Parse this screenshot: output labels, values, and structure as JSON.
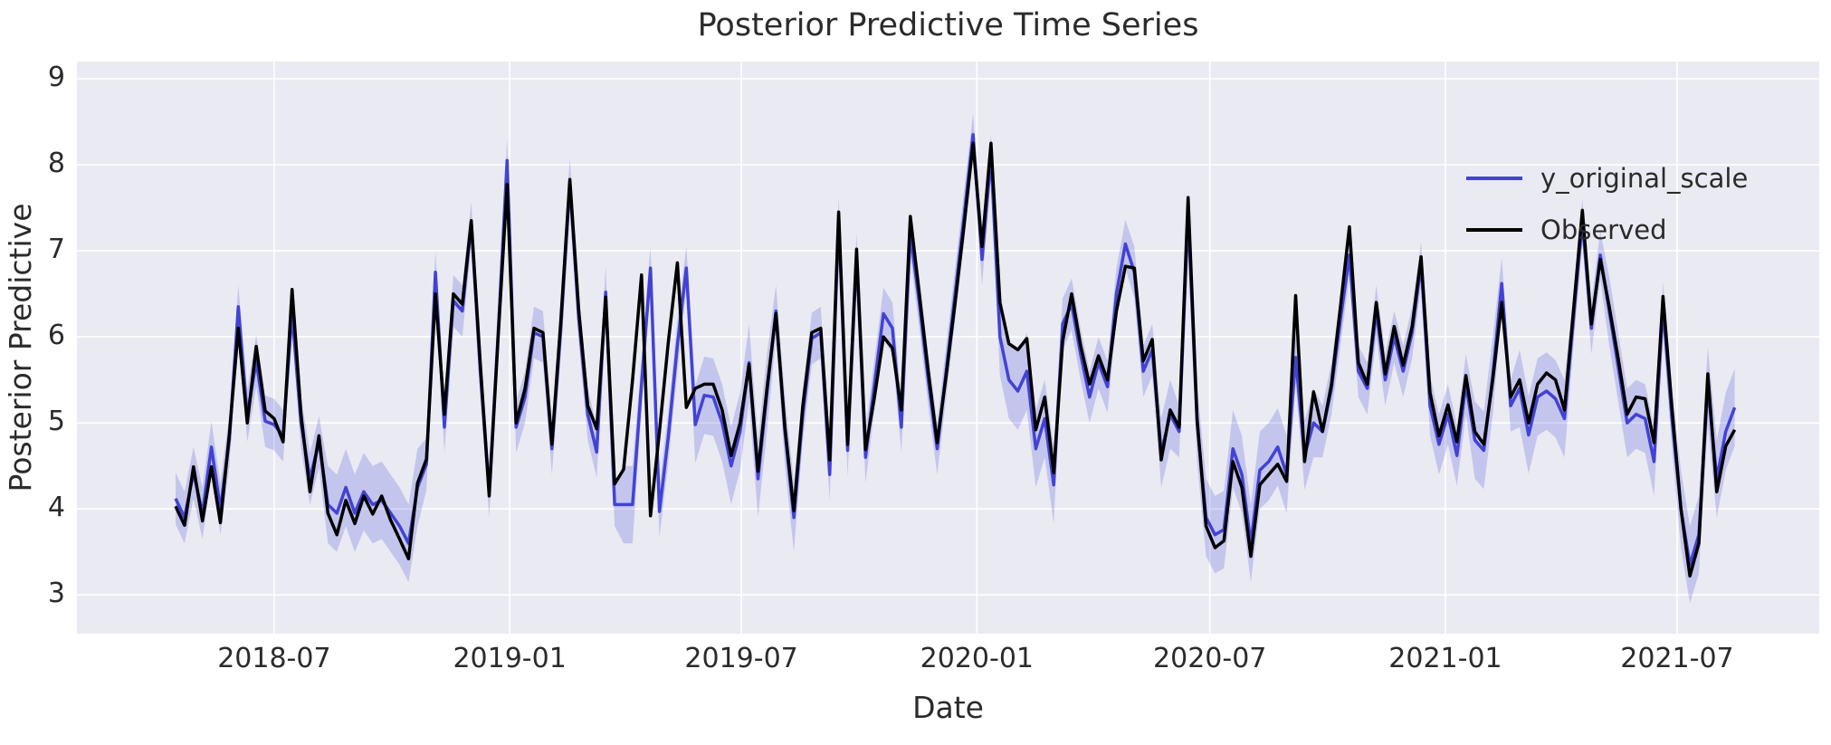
{
  "chart_data": {
    "type": "line",
    "title": "Posterior Predictive Time Series",
    "xlabel": "Date",
    "ylabel": "Posterior Predictive",
    "grid": true,
    "legend_position": "upper right",
    "background_color": "#EAEAF2",
    "grid_color": "#ffffff",
    "text_color": "#2b2b2b",
    "band_color": "#4243d4",
    "band_opacity": 0.22,
    "ylim": [
      2.55,
      9.2
    ],
    "yticks": [
      3,
      4,
      5,
      6,
      7,
      8,
      9
    ],
    "start_date": "2018-04-15",
    "freq_days": 7,
    "xticks": [
      {
        "label": "2018-07",
        "day_offset": 77
      },
      {
        "label": "2019-01",
        "day_offset": 261
      },
      {
        "label": "2019-07",
        "day_offset": 442
      },
      {
        "label": "2020-01",
        "day_offset": 626
      },
      {
        "label": "2020-07",
        "day_offset": 808
      },
      {
        "label": "2021-01",
        "day_offset": 992
      },
      {
        "label": "2021-07",
        "day_offset": 1173
      }
    ],
    "series": [
      {
        "name": "y_original_scale",
        "color": "#4243d4",
        "values": [
          4.12,
          3.9,
          4.42,
          3.95,
          4.72,
          4.0,
          4.8,
          6.35,
          5.08,
          5.72,
          5.02,
          4.98,
          4.85,
          6.28,
          5.0,
          4.35,
          4.78,
          4.05,
          3.95,
          4.25,
          3.95,
          4.2,
          4.05,
          4.1,
          3.95,
          3.8,
          3.6,
          4.25,
          4.52,
          6.75,
          4.95,
          6.42,
          6.3,
          7.32,
          5.6,
          4.2,
          6.05,
          8.05,
          4.95,
          5.3,
          6.05,
          6.0,
          4.7,
          6.1,
          7.78,
          6.2,
          5.1,
          4.66,
          6.52,
          4.05,
          4.05,
          4.05,
          5.45,
          6.8,
          3.97,
          4.85,
          5.9,
          6.8,
          4.98,
          5.32,
          5.3,
          5.0,
          4.5,
          4.9,
          5.7,
          4.35,
          5.35,
          6.3,
          4.9,
          3.9,
          5.1,
          5.98,
          6.05,
          4.4,
          7.38,
          4.68,
          6.95,
          4.6,
          5.45,
          6.27,
          6.1,
          4.95,
          7.2,
          6.4,
          5.5,
          4.7,
          5.6,
          6.5,
          7.4,
          8.35,
          6.9,
          8.1,
          6.0,
          5.5,
          5.37,
          5.6,
          4.7,
          5.05,
          4.28,
          6.15,
          6.38,
          5.8,
          5.3,
          5.7,
          5.42,
          6.5,
          7.08,
          6.75,
          5.6,
          5.85,
          4.65,
          5.1,
          4.9,
          7.42,
          5.0,
          3.9,
          3.7,
          3.76,
          4.7,
          4.4,
          3.6,
          4.45,
          4.55,
          4.72,
          4.4,
          5.76,
          4.62,
          5.0,
          4.9,
          5.4,
          6.2,
          6.95,
          5.6,
          5.4,
          6.3,
          5.5,
          6.0,
          5.6,
          6.05,
          6.85,
          5.2,
          4.75,
          5.1,
          4.62,
          5.45,
          4.8,
          4.68,
          5.55,
          6.62,
          5.2,
          5.4,
          4.86,
          5.3,
          5.37,
          5.28,
          5.05,
          6.2,
          7.35,
          6.1,
          6.95,
          6.3,
          5.65,
          5.0,
          5.1,
          5.05,
          4.55,
          6.35,
          5.05,
          4.0,
          3.35,
          3.7,
          5.43,
          4.35,
          4.9,
          5.18
        ]
      },
      {
        "name": "Observed",
        "color": "#000000",
        "values": [
          4.03,
          3.81,
          4.49,
          3.86,
          4.49,
          3.84,
          4.87,
          6.1,
          5.0,
          5.89,
          5.14,
          5.05,
          4.78,
          6.55,
          5.1,
          4.2,
          4.85,
          3.95,
          3.7,
          4.1,
          3.83,
          4.15,
          3.94,
          4.15,
          3.87,
          3.65,
          3.42,
          4.3,
          4.58,
          6.5,
          5.1,
          6.5,
          6.38,
          7.35,
          5.7,
          4.15,
          6.0,
          7.77,
          5.0,
          5.4,
          6.1,
          6.05,
          4.75,
          6.2,
          7.83,
          6.3,
          5.2,
          4.93,
          6.46,
          4.29,
          4.46,
          5.5,
          6.72,
          3.92,
          4.9,
          5.95,
          6.86,
          5.18,
          5.4,
          5.45,
          5.45,
          5.15,
          4.62,
          5.0,
          5.68,
          4.44,
          5.4,
          6.27,
          4.95,
          3.98,
          5.2,
          6.05,
          6.1,
          4.57,
          7.45,
          4.75,
          7.02,
          4.69,
          5.3,
          6.0,
          5.87,
          5.15,
          7.4,
          6.5,
          5.6,
          4.77,
          5.55,
          6.4,
          7.3,
          8.25,
          7.05,
          8.25,
          6.4,
          5.92,
          5.85,
          5.98,
          4.92,
          5.3,
          4.42,
          5.95,
          6.5,
          5.9,
          5.45,
          5.78,
          5.5,
          6.3,
          6.82,
          6.8,
          5.72,
          5.97,
          4.57,
          5.15,
          4.95,
          7.62,
          5.05,
          3.8,
          3.55,
          3.63,
          4.55,
          4.25,
          3.45,
          4.28,
          4.4,
          4.52,
          4.32,
          6.48,
          4.55,
          5.36,
          4.9,
          5.45,
          6.35,
          7.28,
          5.7,
          5.45,
          6.4,
          5.57,
          6.12,
          5.67,
          6.12,
          6.93,
          5.35,
          4.85,
          5.21,
          4.78,
          5.55,
          4.9,
          4.75,
          5.5,
          6.4,
          5.3,
          5.5,
          5.0,
          5.45,
          5.58,
          5.5,
          5.15,
          6.3,
          7.47,
          6.15,
          6.9,
          6.35,
          5.75,
          5.1,
          5.3,
          5.28,
          4.77,
          6.47,
          5.17,
          4.0,
          3.22,
          3.6,
          5.57,
          4.2,
          4.73,
          4.92
        ]
      }
    ],
    "hdi_width": [
      0.3,
      0.3,
      0.3,
      0.3,
      0.3,
      0.3,
      0.3,
      0.25,
      0.3,
      0.3,
      0.3,
      0.3,
      0.3,
      0.25,
      0.3,
      0.3,
      0.3,
      0.45,
      0.45,
      0.45,
      0.45,
      0.45,
      0.45,
      0.45,
      0.45,
      0.45,
      0.45,
      0.45,
      0.3,
      0.25,
      0.3,
      0.3,
      0.3,
      0.25,
      0.3,
      0.3,
      0.3,
      0.25,
      0.3,
      0.3,
      0.3,
      0.3,
      0.3,
      0.3,
      0.3,
      0.25,
      0.3,
      0.3,
      0.3,
      0.25,
      0.45,
      0.45,
      0.3,
      0.25,
      0.3,
      0.3,
      0.3,
      0.25,
      0.45,
      0.45,
      0.45,
      0.45,
      0.45,
      0.45,
      0.45,
      0.45,
      0.45,
      0.3,
      0.4,
      0.4,
      0.3,
      0.3,
      0.3,
      0.3,
      0.25,
      0.3,
      0.25,
      0.3,
      0.3,
      0.3,
      0.3,
      0.3,
      0.25,
      0.3,
      0.3,
      0.3,
      0.3,
      0.3,
      0.3,
      0.25,
      0.3,
      0.25,
      0.45,
      0.45,
      0.45,
      0.45,
      0.45,
      0.45,
      0.45,
      0.3,
      0.3,
      0.3,
      0.3,
      0.3,
      0.3,
      0.3,
      0.28,
      0.3,
      0.3,
      0.3,
      0.4,
      0.4,
      0.3,
      0.25,
      0.45,
      0.45,
      0.45,
      0.45,
      0.45,
      0.45,
      0.45,
      0.45,
      0.45,
      0.45,
      0.45,
      0.3,
      0.4,
      0.4,
      0.3,
      0.3,
      0.3,
      0.25,
      0.3,
      0.3,
      0.3,
      0.3,
      0.3,
      0.3,
      0.3,
      0.25,
      0.35,
      0.35,
      0.35,
      0.35,
      0.35,
      0.45,
      0.45,
      0.45,
      0.3,
      0.3,
      0.45,
      0.45,
      0.45,
      0.45,
      0.45,
      0.45,
      0.3,
      0.25,
      0.3,
      0.28,
      0.4,
      0.4,
      0.4,
      0.4,
      0.4,
      0.4,
      0.28,
      0.35,
      0.45,
      0.45,
      0.45,
      0.45,
      0.45,
      0.45,
      0.45
    ]
  }
}
